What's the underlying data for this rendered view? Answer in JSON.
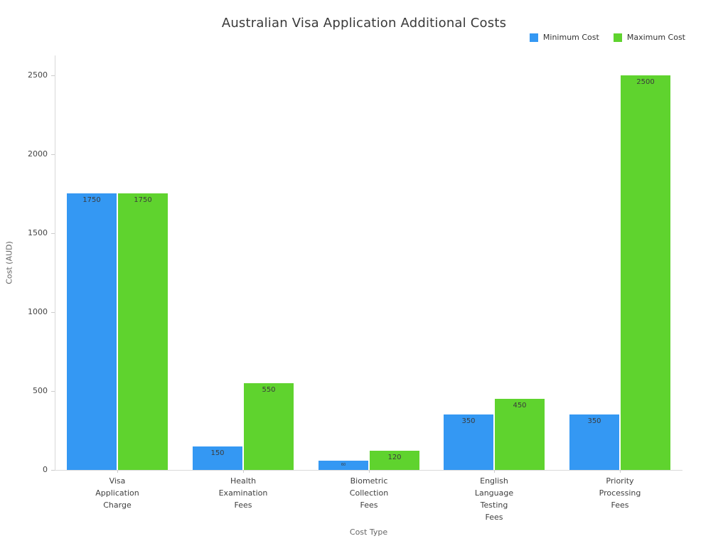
{
  "chart_data": {
    "type": "bar",
    "title": "Australian Visa Application Additional Costs",
    "xlabel": "Cost Type",
    "ylabel": "Cost (AUD)",
    "categories": [
      "Visa\nApplication\nCharge",
      "Health\nExamination\nFees",
      "Biometric\nCollection\nFees",
      "English\nLanguage\nTesting\nFees",
      "Priority\nProcessing\nFees"
    ],
    "series": [
      {
        "name": "Minimum Cost",
        "color": "#3498f3",
        "values": [
          1750,
          150,
          60,
          350,
          350
        ]
      },
      {
        "name": "Maximum Cost",
        "color": "#5fd32e",
        "values": [
          1750,
          550,
          120,
          450,
          2500
        ]
      }
    ],
    "ylim": [
      0,
      2500
    ],
    "yticks": [
      0,
      500,
      1000,
      1500,
      2000,
      2500
    ],
    "grid": false,
    "legend_position": "top-right",
    "bar_value_labels": true
  },
  "colors": {
    "title_text": "#3a3a3a",
    "axis_text": "#666666",
    "tick_text": "#444444",
    "spine": "#d9d9d9",
    "bar_label_text": "#3b3b3b"
  }
}
